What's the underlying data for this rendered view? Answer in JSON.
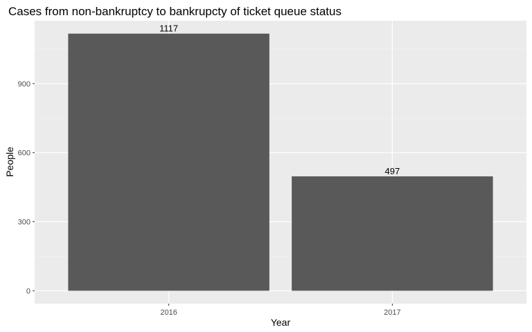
{
  "chart_data": {
    "type": "bar",
    "title": "Cases from non-bankruptcy to bankrupcty of ticket queue status",
    "xlabel": "Year",
    "ylabel": "People",
    "categories": [
      "2016",
      "2017"
    ],
    "values": [
      1117,
      497
    ],
    "data_labels": [
      "1117",
      "497"
    ],
    "yticks": [
      0,
      300,
      600,
      900
    ],
    "ytick_labels": [
      "0",
      "300",
      "600",
      "900"
    ],
    "ylim": [
      -56,
      1173
    ],
    "grid": true,
    "legend": "none",
    "colors": {
      "bar": "#595959",
      "panel": "#ebebeb",
      "grid_major": "#ffffff",
      "grid_minor": "#f2f2f2",
      "tick": "#333333"
    }
  }
}
